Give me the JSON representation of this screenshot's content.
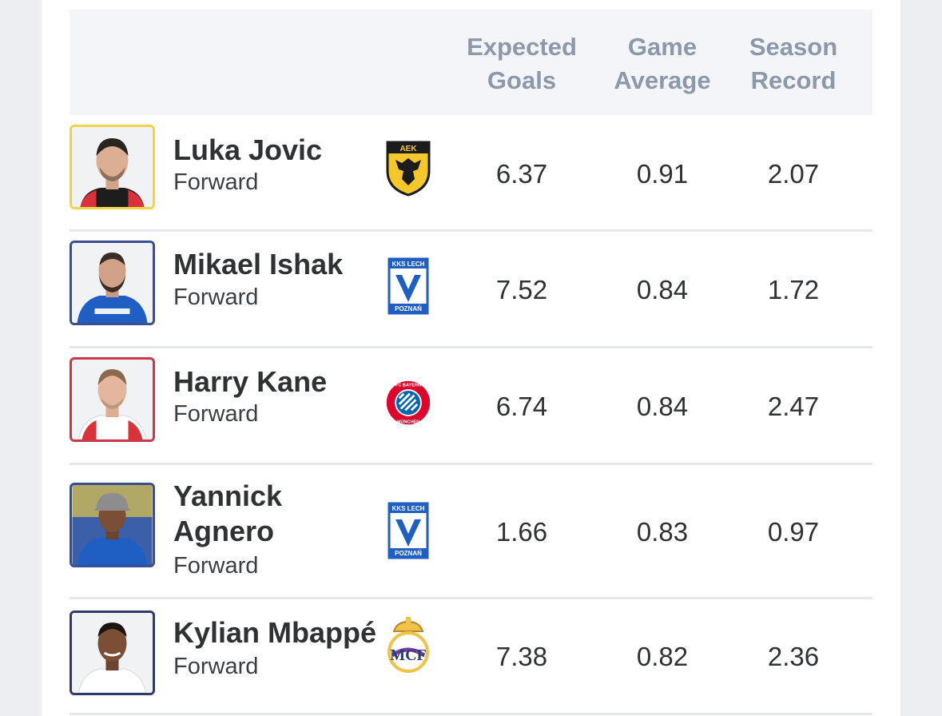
{
  "header": {
    "expected_goals": [
      "Expected",
      "Goals"
    ],
    "game_average": [
      "Game",
      "Average"
    ],
    "season_record": [
      "Season",
      "Record"
    ]
  },
  "players": [
    {
      "name": "Luka Jovic",
      "position": "Forward",
      "club_icon": "aek-athens-crest-icon",
      "expected_goals": "6.37",
      "game_average": "0.91",
      "season_record": "2.07",
      "frame_color": "#f0d54a"
    },
    {
      "name": "Mikael Ishak",
      "position": "Forward",
      "club_icon": "lech-poznan-crest-icon",
      "expected_goals": "7.52",
      "game_average": "0.84",
      "season_record": "1.72",
      "frame_color": "#3a4f8f"
    },
    {
      "name": "Harry Kane",
      "position": "Forward",
      "club_icon": "bayern-munchen-crest-icon",
      "expected_goals": "6.74",
      "game_average": "0.84",
      "season_record": "2.47",
      "frame_color": "#c93a48"
    },
    {
      "name_line1": "Yannick",
      "name_line2": "Agnero",
      "position": "Forward",
      "club_icon": "lech-poznan-crest-icon",
      "expected_goals": "1.66",
      "game_average": "0.83",
      "season_record": "0.97",
      "frame_color": "#3a4f8f"
    },
    {
      "name": "Kylian Mbappé",
      "position": "Forward",
      "club_icon": "real-madrid-crest-icon",
      "expected_goals": "7.38",
      "game_average": "0.82",
      "season_record": "2.36",
      "frame_color": "#2f3b6b"
    }
  ],
  "colors": {
    "header_bg": "#f3f5f8",
    "header_text": "#8c99ab",
    "divider": "#e6e8ec",
    "text": "#2f3133"
  }
}
